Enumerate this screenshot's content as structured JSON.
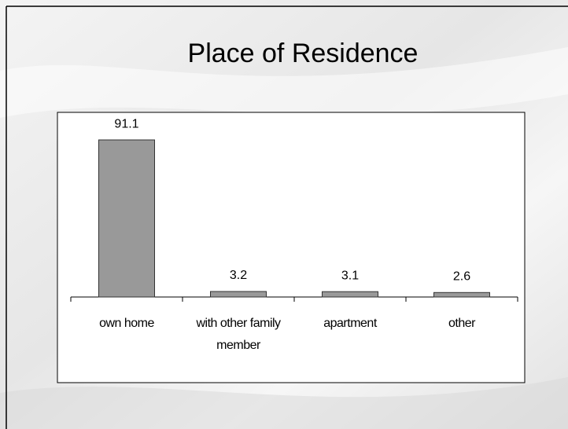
{
  "chart_data": {
    "type": "bar",
    "title": "Place of Residence",
    "categories": [
      "own home",
      "with other family member",
      "apartment",
      "other"
    ],
    "values": [
      91.1,
      3.2,
      3.1,
      2.6
    ],
    "color": "#999999",
    "ylim": [
      0,
      100
    ]
  }
}
